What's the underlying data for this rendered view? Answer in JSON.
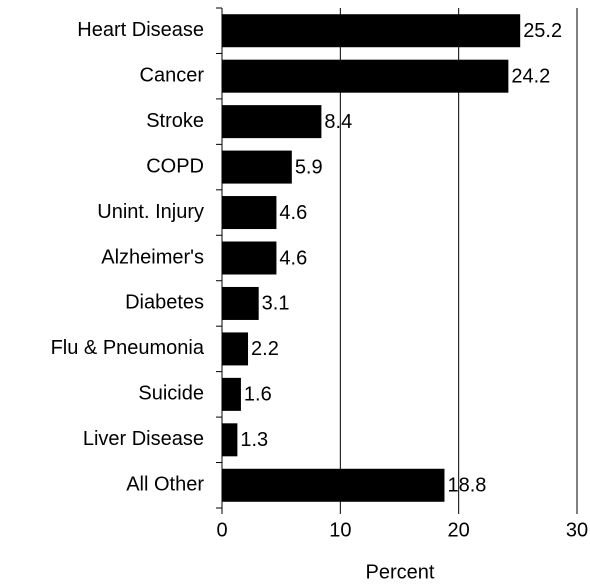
{
  "chart_data": {
    "type": "barh",
    "categories": [
      "Heart Disease",
      "Cancer",
      "Stroke",
      "COPD",
      "Unint. Injury",
      "Alzheimer's",
      "Diabetes",
      "Flu & Pneumonia",
      "Suicide",
      "Liver Disease",
      "All Other"
    ],
    "values": [
      25.2,
      24.2,
      8.4,
      5.9,
      4.6,
      4.6,
      3.1,
      2.2,
      1.6,
      1.3,
      18.8
    ],
    "color": "#000000",
    "xlabel": "Percent",
    "xlim": [
      0,
      30
    ],
    "xticks": [
      0,
      10,
      20,
      30
    ],
    "grid": true
  }
}
